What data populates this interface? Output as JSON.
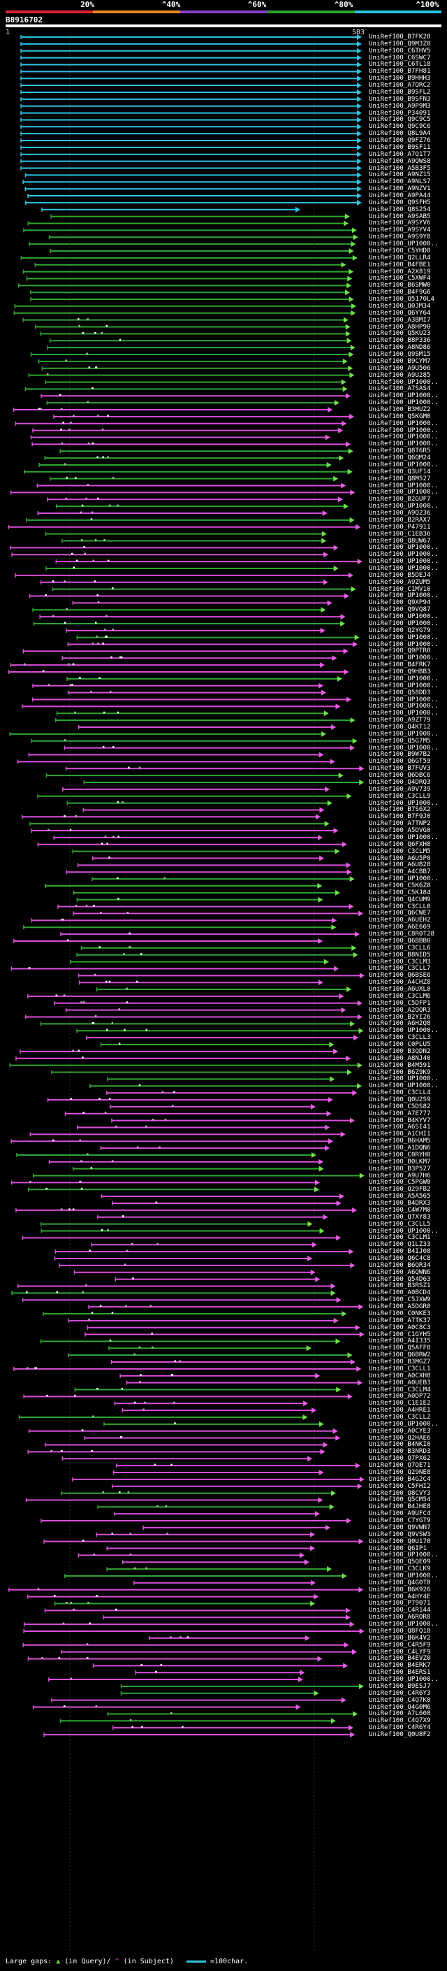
{
  "scale": {
    "labels": [
      "20%",
      "^40%",
      "^60%",
      "^80%",
      "^100%"
    ],
    "colors": [
      "#e0202a",
      "#e6891c",
      "#8a3ec9",
      "#2aa52a",
      "#26c6dc"
    ]
  },
  "query": {
    "title": "B8916702",
    "start": "1",
    "end": "583"
  },
  "colors": {
    "cyan": "#2ec3e3",
    "green": "#2fa52f",
    "pink": "#d94fd9",
    "green_head": "#6fe04a",
    "pink_head": "#e85ee6",
    "gap_query": "#ffffff",
    "gap_subject": "#b7b7b7"
  },
  "hits": [
    "UniRef100_B7FK28",
    "UniRef100_Q9M3Z0",
    "UniRef100_C6THV5",
    "UniRef100_C6SWC7",
    "UniRef100_C6TL18",
    "UniRef100_B7FH81",
    "UniRef100_B9HHH3",
    "UniRef100_A7QRC2",
    "UniRef100_B9SFL2",
    "UniRef100_B9SFN3",
    "UniRef100_A9P9M3",
    "UniRef100_P34091",
    "UniRef100_Q9C9C5",
    "UniRef100_Q9C9C6",
    "UniRef100_Q8L9A4",
    "UniRef100_Q9FZ76",
    "UniRef100_B9SF11",
    "UniRef100_A7Q1T7",
    "UniRef100_A9QWS8",
    "UniRef100_A5B3F5",
    "UniRef100_A9NZ15",
    "UniRef100_A9NLS7",
    "UniRef100_A9NZV1",
    "UniRef100_A9PA44",
    "UniRef100_Q9SFH5",
    "UniRef100_Q8S254",
    "UniRef100_A9SAB5",
    "UniRef100_A9SYV6",
    "UniRef100_A9SYV4",
    "UniRef100_A9S9Y8",
    "UniRef100_UP1000..",
    "UniRef100_C5YHD0",
    "UniRef100_Q2LLR4",
    "UniRef100_B4FBE1",
    "UniRef100_A2X819",
    "UniRef100_C5XWF4",
    "UniRef100_B6SMW0",
    "UniRef100_B4F9G6",
    "UniRef100_Q5170L4",
    "UniRef100_Q0JM34",
    "UniRef100_Q6YY64",
    "UniRef100_A3BMI7",
    "UniRef100_A8HP90",
    "UniRef100_Q5KU23",
    "UniRef100_B8P336",
    "UniRef100_A8ND86",
    "UniRef100_Q9SM15",
    "UniRef100_B9CYM7",
    "UniRef100_A9U506",
    "UniRef100_A9U285",
    "UniRef100_UP1000..",
    "UniRef100_A7SAS4",
    "UniRef100_UP1000..",
    "UniRef100_UP1000..",
    "UniRef100_B3MUZ2",
    "UniRef100_Q5KGM0",
    "UniRef100_UP1000..",
    "UniRef100_UP1000..",
    "UniRef100_UP1000..",
    "UniRef100_UP1000..",
    "UniRef100_Q8T6R5",
    "UniRef100_Q6QM24",
    "UniRef100_UP1000..",
    "UniRef100_Q3UF14",
    "UniRef100_Q8M527",
    "UniRef100_UP1000..",
    "UniRef100_UP1000..",
    "UniRef100_B2GUF7",
    "UniRef100_UP1000..",
    "UniRef100_A9Q236",
    "UniRef100_B2RAX7",
    "UniRef100_P47911",
    "UniRef100_C1EB36",
    "UniRef100_Q8UW67",
    "UniRef100_UP1000..",
    "UniRef100_UP1000..",
    "UniRef100_UP1000..",
    "UniRef100_UP1000..",
    "UniRef100_B5DEJ4",
    "UniRef100_A9ZUM5",
    "UniRef100_C1MV10",
    "UniRef100_UP1000..",
    "UniRef100_Q9XP94",
    "UniRef100_Q9VQ87",
    "UniRef100_UP1000..",
    "UniRef100_UP1000..",
    "UniRef100_Q2YG79",
    "UniRef100_UP1000..",
    "UniRef100_UP1000..",
    "UniRef100_Q9PTR0",
    "UniRef100_UP1000..",
    "UniRef100_B4FRK7",
    "UniRef100_Q9HBB3",
    "UniRef100_UP1000..",
    "UniRef100_UP1000..",
    "UniRef100_Q58DD3",
    "UniRef100_UP1000..",
    "UniRef100_UP1000..",
    "UniRef100_UP1000..",
    "UniRef100_A9ZT79",
    "UniRef100_Q4KT12",
    "UniRef100_UP1000..",
    "UniRef100_Q5G7M5",
    "UniRef100_UP1000..",
    "UniRef100_B9W7B2",
    "UniRef100_Q6GT59",
    "UniRef100_B7FUV3",
    "UniRef100_Q6DBC6",
    "UniRef100_Q4DRQ3",
    "UniRef100_A9V739",
    "UniRef100_C3CLL9",
    "UniRef100_UP1000..",
    "UniRef100_B7S6X2",
    "UniRef100_B7F9J0",
    "UniRef100_A7TNP2",
    "UniRef100_A5DVG0",
    "UniRef100_UP1000..",
    "UniRef100_Q6FXH8",
    "UniRef100_C3CLM5",
    "UniRef100_A6U5P0",
    "UniRef100_A6UB28",
    "UniRef100_A4CBB7",
    "UniRef100_UP1000..",
    "UniRef100_C5K6Z8",
    "UniRef100_C5KJ84",
    "UniRef100_Q4CUM9",
    "UniRef100_C3CLL0",
    "UniRef100_Q6CWE7",
    "UniRef100_A6UEH2",
    "UniRef100_A6E669",
    "UniRef100_C8R0T28",
    "UniRef100_Q6BBB0",
    "UniRef100_C3CLL6",
    "UniRef100_B8NID5",
    "UniRef100_C3CLM3",
    "UniRef100_C3CLL7",
    "UniRef100_Q6BSE6",
    "UniRef100_A4CHZ8",
    "UniRef100_A6UXL0",
    "UniRef100_C3CLM6",
    "UniRef100_C5DFP1",
    "UniRef100_A2QQR3",
    "UniRef100_B2YI26",
    "UniRef100_A6H2Q8",
    "UniRef100_UP1000..",
    "UniRef100_C3CLL3",
    "UniRef100_C0PLU5",
    "UniRef100_B3QDN2",
    "UniRef100_A8NJ40",
    "UniRef100_B4M591",
    "UniRef100_B6Z9K9",
    "UniRef100_UP1000..",
    "UniRef100_UP1000..",
    "UniRef100_C3CLL4",
    "UniRef100_Q0U2S9",
    "UniRef100_C5DS82",
    "UniRef100_A7E777",
    "UniRef100_B4KYV7",
    "UniRef100_A6SI41",
    "UniRef100_A1CHI1",
    "UniRef100_B6HAM5",
    "UniRef100_A1DQN6",
    "UniRef100_C0RYH0",
    "UniRef100_B0LKM7",
    "UniRef100_B3P527",
    "UniRef100_A9U7H6",
    "UniRef100_C5PGW8",
    "UniRef100_Q29FB2",
    "UniRef100_A5A565",
    "UniRef100_B4DRX3",
    "UniRef100_C4W7M0",
    "UniRef100_Q7XY83",
    "UniRef100_C3CLL5",
    "UniRef100_UP1000..",
    "UniRef100_C3CLM1",
    "UniRef100_Q1LZ33",
    "UniRef100_B4IJ08",
    "UniRef100_Q6C4C8",
    "UniRef100_B6QR34",
    "UniRef100_A6QWN6",
    "UniRef100_Q54D63",
    "UniRef100_B3RSZ1",
    "UniRef100_A0BCD4",
    "UniRef100_C5JXW9",
    "UniRef100_A5DGR0",
    "UniRef100_C0NKE3",
    "UniRef100_A7TK37",
    "UniRef100_A0C8C3",
    "UniRef100_C1GYH5",
    "UniRef100_A4I335",
    "UniRef100_Q5AFF0",
    "UniRef100_Q6BRW2",
    "UniRef100_B3MGZ7",
    "UniRef100_C3CLL1",
    "UniRef100_A0CXH8",
    "UniRef100_A0UEB3",
    "UniRef100_C3CLM4",
    "UniRef100_A0DP72",
    "UniRef100_C1E1E2",
    "UniRef100_A4HRE1",
    "UniRef100_C3CLL2",
    "UniRef100_UP1000..",
    "UniRef100_A0CYE3",
    "UniRef100_Q2HAE6",
    "UniRef100_B4NKI0",
    "UniRef100_B3NRD3",
    "UniRef100_Q7PX62",
    "UniRef100_Q7QE71",
    "UniRef100_Q29NE8",
    "UniRef100_B4G2C4",
    "UniRef100_C5FHI2",
    "UniRef100_Q8CVY3",
    "UniRef100_Q5CM54",
    "UniRef100_B4JHE8",
    "UniRef100_A9UFC4",
    "UniRef100_C7YGT9",
    "UniRef100_Q9VWN7",
    "UniRef100_Q9VSW3",
    "UniRef100_Q0U170",
    "UniRef100_Q6IP1",
    "UniRef100_UP1000..",
    "UniRef100_Q5QE09",
    "UniRef100_C3CLK9",
    "UniRef100_UP1000..",
    "UniRef100_Q4G0T8",
    "UniRef100_B6K926",
    "UniRef100_A4HY4E",
    "UniRef100_P79071",
    "UniRef100_C4R144",
    "UniRef100_A6ROR8",
    "UniRef100_UP1000..",
    "UniRef100_Q8FQ18",
    "UniRef100_B6K4V2",
    "UniRef100_C4R5F9",
    "UniRef100_C4LYF9",
    "UniRef100_B4EVZ0",
    "UniRef100_B4ERK7",
    "UniRef100_B4ERS1",
    "UniRef100_UP1000..",
    "UniRef100_B9ESJ7",
    "UniRef100_C4R6Y3",
    "UniRef100_C4Q7K0",
    "UniRef100_Q4G0M6",
    "UniRef100_A7L608",
    "UniRef100_C4Q7X9",
    "UniRef100_C4R6Y4",
    "UniRef100_Q0U8F2"
  ],
  "legend": {
    "label": "Large gaps:",
    "query_text": "(in Query)/",
    "subject_text": "(in Subject)",
    "scale_text": "=100char."
  }
}
